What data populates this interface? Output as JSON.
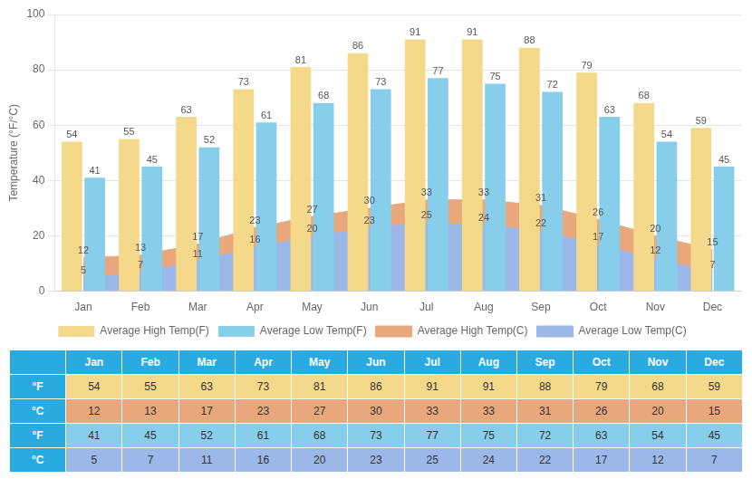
{
  "chart_data": {
    "type": "bar",
    "categories": [
      "Jan",
      "Feb",
      "Mar",
      "Apr",
      "May",
      "Jun",
      "Jul",
      "Aug",
      "Sep",
      "Oct",
      "Nov",
      "Dec"
    ],
    "series": [
      {
        "name": "Average High Temp(F)",
        "color": "#F5D98B",
        "values": [
          54,
          55,
          63,
          73,
          81,
          86,
          91,
          91,
          88,
          79,
          68,
          59
        ]
      },
      {
        "name": "Average Low Temp(F)",
        "color": "#87CEEB",
        "values": [
          41,
          45,
          52,
          61,
          68,
          73,
          77,
          75,
          72,
          63,
          54,
          45
        ]
      },
      {
        "name": "Average High Temp(C)",
        "type": "area",
        "color": "#E8A87C",
        "values": [
          12,
          13,
          17,
          23,
          27,
          30,
          33,
          33,
          31,
          26,
          20,
          15
        ]
      },
      {
        "name": "Average Low Temp(C)",
        "type": "area",
        "color": "#9BB8E8",
        "values": [
          5,
          7,
          11,
          16,
          20,
          23,
          25,
          24,
          22,
          17,
          12,
          7
        ]
      }
    ],
    "ylabel": "Temperature (°F/°C)",
    "ylim": [
      0,
      100
    ],
    "yticks": [
      0,
      20,
      40,
      60,
      80,
      100
    ],
    "grid": true,
    "legend": "bottom",
    "data_labels": true,
    "table": {
      "color": "#29ABE2",
      "rows": [
        {
          "label": "°F",
          "series": "Average High Temp(F)"
        },
        {
          "label": "°C",
          "series": "Average High Temp(C)"
        },
        {
          "label": "°F",
          "series": "Average Low Temp(F)"
        },
        {
          "label": "°C",
          "series": "Average Low Temp(C)"
        }
      ]
    }
  }
}
